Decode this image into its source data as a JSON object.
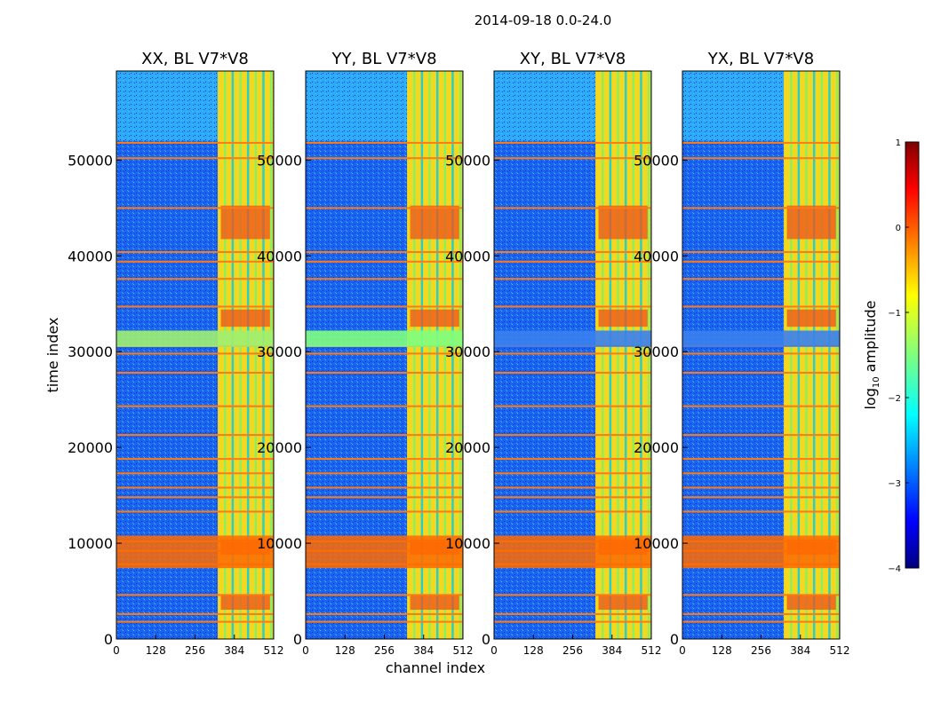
{
  "chart_data": {
    "type": "heatmap",
    "suptitle": "2014-09-18 0.0-24.0",
    "xlabel": "channel index",
    "ylabel": "time index",
    "xlim": [
      0,
      512
    ],
    "ylim": [
      0,
      59300
    ],
    "xticks": [
      "0",
      "128",
      "256",
      "384",
      "512"
    ],
    "yticks": [
      "0",
      "10000",
      "20000",
      "30000",
      "40000",
      "50000"
    ],
    "panels": [
      {
        "title": "XX, BL V7*V8"
      },
      {
        "title": "YY, BL V7*V8"
      },
      {
        "title": "XY, BL V7*V8"
      },
      {
        "title": "YX, BL V7*V8"
      }
    ],
    "colorbar": {
      "label": "log10 amplitude",
      "range": [
        -4,
        1
      ],
      "ticks": [
        "1",
        "0",
        "−1",
        "−2",
        "−3",
        "−4"
      ]
    },
    "bright_channel_band": [
      330,
      510
    ],
    "flagged_time_rows": [
      1800,
      2600,
      4600,
      7800,
      9200,
      10200,
      13300,
      14800,
      15800,
      17300,
      18800,
      21300,
      24300,
      27800,
      29800,
      30600,
      34700,
      37600,
      39400,
      40400,
      45000,
      50200,
      51800
    ]
  }
}
